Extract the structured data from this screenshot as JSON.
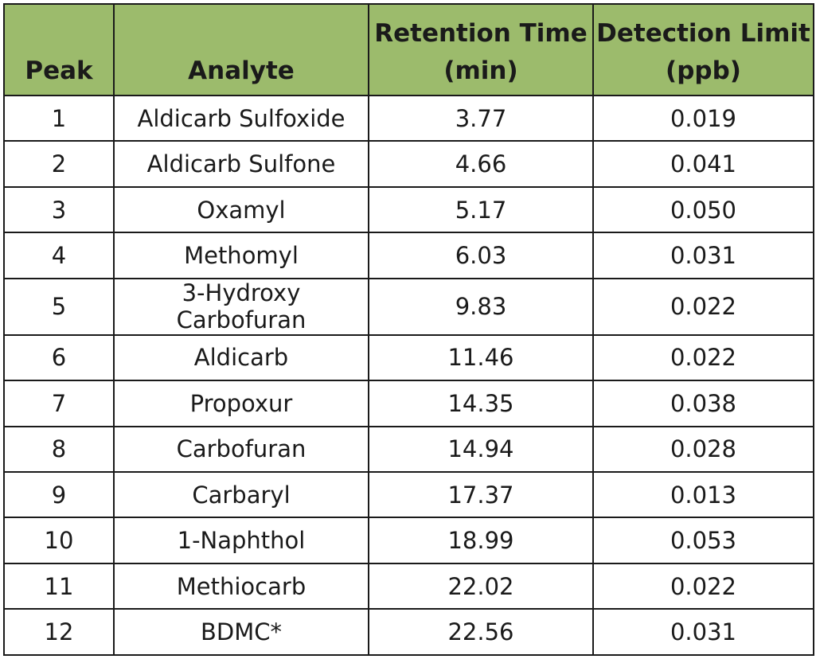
{
  "chart_data": {
    "type": "table",
    "columns": [
      {
        "lines": [
          "Peak"
        ]
      },
      {
        "lines": [
          "Analyte"
        ]
      },
      {
        "lines": [
          "Retention Time",
          "(min)"
        ]
      },
      {
        "lines": [
          "Detection Limit",
          "(ppb)"
        ]
      }
    ],
    "rows": [
      [
        "1",
        "Aldicarb Sulfoxide",
        "3.77",
        "0.019"
      ],
      [
        "2",
        "Aldicarb Sulfone",
        "4.66",
        "0.041"
      ],
      [
        "3",
        "Oxamyl",
        "5.17",
        "0.050"
      ],
      [
        "4",
        "Methomyl",
        "6.03",
        "0.031"
      ],
      [
        "5",
        "3-Hydroxy Carbofuran",
        "9.83",
        "0.022"
      ],
      [
        "6",
        "Aldicarb",
        "11.46",
        "0.022"
      ],
      [
        "7",
        "Propoxur",
        "14.35",
        "0.038"
      ],
      [
        "8",
        "Carbofuran",
        "14.94",
        "0.028"
      ],
      [
        "9",
        "Carbaryl",
        "17.37",
        "0.013"
      ],
      [
        "10",
        "1-Naphthol",
        "18.99",
        "0.053"
      ],
      [
        "11",
        "Methiocarb",
        "22.02",
        "0.022"
      ],
      [
        "12",
        "BDMC*",
        "22.56",
        "0.031"
      ]
    ],
    "colors": {
      "header_background": "#9cbb6c",
      "border": "#1a1a1a",
      "text": "#1a1a1a"
    }
  }
}
